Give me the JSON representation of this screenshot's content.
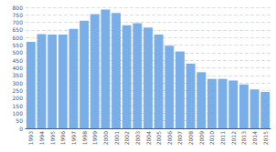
{
  "chart_data": {
    "type": "bar",
    "categories": [
      "1993",
      "1994",
      "1995",
      "1996",
      "1997",
      "1998",
      "1999",
      "2000",
      "2001",
      "2002",
      "2003",
      "2004",
      "2005",
      "2006",
      "2007",
      "2008",
      "2009",
      "2010",
      "2011",
      "2012",
      "2013",
      "2014",
      "2015"
    ],
    "values": [
      572,
      622,
      619,
      619,
      657,
      712,
      755,
      785,
      762,
      681,
      694,
      666,
      619,
      546,
      508,
      428,
      371,
      327,
      327,
      316,
      290,
      257,
      241
    ],
    "color": "#7aaee8",
    "ylim": [
      0,
      800
    ],
    "yticks": [
      0,
      50,
      100,
      150,
      200,
      250,
      300,
      350,
      400,
      450,
      500,
      550,
      600,
      650,
      700,
      750,
      800
    ],
    "grid": true
  }
}
